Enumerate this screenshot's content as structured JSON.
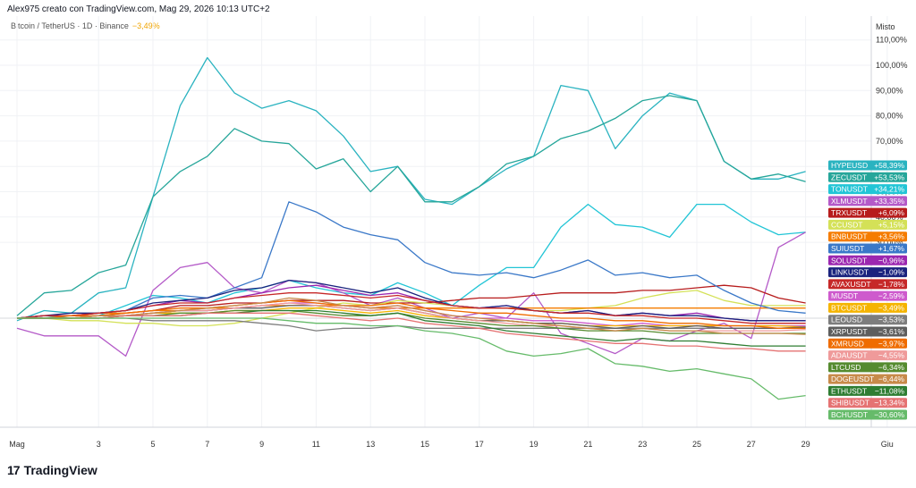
{
  "header": {
    "text": "Alex975 creato con TradingView.com, Mag 29, 2026 10:13 UTC+2"
  },
  "symbol": {
    "label": "Bitcoin / TetherUS · 1D · Binance",
    "change": "−3,49%"
  },
  "scale_mode": "Misto",
  "brand": {
    "name": "TradingView"
  },
  "chart_data": {
    "type": "line",
    "x_ticks": [
      {
        "d": 0,
        "label": "Mag"
      },
      {
        "d": 3,
        "label": "3"
      },
      {
        "d": 5,
        "label": "5"
      },
      {
        "d": 7,
        "label": "7"
      },
      {
        "d": 9,
        "label": "9"
      },
      {
        "d": 11,
        "label": "11"
      },
      {
        "d": 13,
        "label": "13"
      },
      {
        "d": 15,
        "label": "15"
      },
      {
        "d": 17,
        "label": "17"
      },
      {
        "d": 19,
        "label": "19"
      },
      {
        "d": 21,
        "label": "21"
      },
      {
        "d": 23,
        "label": "23"
      },
      {
        "d": 25,
        "label": "25"
      },
      {
        "d": 27,
        "label": "27"
      },
      {
        "d": 29,
        "label": "29"
      },
      {
        "d": 32,
        "label": "Giu"
      }
    ],
    "y_ticks": [
      {
        "v": 110,
        "label": "110,00%"
      },
      {
        "v": 100,
        "label": "100,00%"
      },
      {
        "v": 90,
        "label": "90,00%"
      },
      {
        "v": 80,
        "label": "80,00%"
      },
      {
        "v": 70,
        "label": "70,00%"
      },
      {
        "v": 60,
        "label": "60,00%"
      },
      {
        "v": 50,
        "label": "50,00%"
      },
      {
        "v": 40,
        "label": "40,00%"
      },
      {
        "v": 30,
        "label": "30,00%"
      }
    ],
    "x_domain": [
      0,
      32
    ],
    "y_domain": [
      -40,
      115
    ],
    "grid": true,
    "series": [
      {
        "name": "HYPEUSD",
        "change": "+58,39%",
        "color": "#2ab3c0",
        "values": [
          -1,
          3,
          2,
          10,
          12,
          48,
          84,
          103,
          89,
          83,
          86,
          82,
          72,
          58,
          60,
          47,
          45,
          52,
          59,
          64,
          92,
          90,
          67,
          80,
          89,
          86,
          62,
          55,
          55,
          58
        ]
      },
      {
        "name": "ZECUSDT",
        "change": "+53,53%",
        "color": "#26a69a",
        "values": [
          1,
          10,
          11,
          18,
          21,
          48,
          58,
          64,
          75,
          70,
          69,
          59,
          63,
          50,
          60,
          46,
          46,
          52,
          61,
          64,
          71,
          74,
          79,
          86,
          88,
          86,
          62,
          55,
          57,
          54
        ]
      },
      {
        "name": "TONUSDT",
        "change": "+34,21%",
        "color": "#22c5d6",
        "values": [
          0,
          1,
          0,
          1,
          5,
          9,
          8,
          6,
          10,
          12,
          15,
          12,
          10,
          9,
          14,
          10,
          5,
          13,
          20,
          20,
          36,
          45,
          37,
          36,
          32,
          45,
          45,
          38,
          33,
          34
        ]
      },
      {
        "name": "XLMUSDT",
        "change": "+33,35%",
        "color": "#b45ac8",
        "values": [
          -4,
          -7,
          -7,
          -7,
          -15,
          11,
          20,
          22,
          12,
          10,
          15,
          14,
          10,
          5,
          8,
          4,
          0,
          2,
          0,
          10,
          -6,
          -10,
          -14,
          -8,
          -9,
          -5,
          -2,
          -8,
          28,
          34
        ]
      },
      {
        "name": "TRXUSDT",
        "change": "+6,09%",
        "color": "#b71c1c",
        "values": [
          0,
          1,
          1,
          1,
          2,
          3,
          5,
          5,
          6,
          6,
          7,
          7,
          7,
          6,
          6,
          6,
          7,
          8,
          8,
          9,
          10,
          10,
          10,
          11,
          11,
          12,
          13,
          12,
          8,
          6
        ]
      },
      {
        "name": "CCUSDT",
        "change": "+5,15%",
        "color": "#d4e157",
        "values": [
          0,
          0,
          -1,
          -1,
          -2,
          -2,
          -3,
          -3,
          -2,
          0,
          2,
          4,
          6,
          5,
          7,
          6,
          5,
          4,
          4,
          3,
          3,
          4,
          5,
          8,
          10,
          11,
          7,
          5,
          5,
          5
        ]
      },
      {
        "name": "BNBUSDT",
        "change": "+3,56%",
        "color": "#f57c00",
        "values": [
          0,
          1,
          1,
          2,
          2,
          3,
          3,
          4,
          4,
          5,
          5,
          5,
          5,
          4,
          4,
          4,
          4,
          4,
          4,
          4,
          4,
          4,
          4,
          4,
          4,
          4,
          4,
          4,
          4,
          4
        ]
      },
      {
        "name": "SUIUSDT",
        "change": "+1,67%",
        "color": "#3a78c8",
        "values": [
          0,
          1,
          1,
          2,
          3,
          8,
          9,
          8,
          12,
          16,
          46,
          42,
          36,
          33,
          31,
          22,
          18,
          17,
          18,
          16,
          19,
          23,
          17,
          18,
          16,
          17,
          11,
          6,
          3,
          2
        ]
      },
      {
        "name": "SOLUSDT",
        "change": "−0,96%",
        "color": "#9c27b0",
        "values": [
          0,
          1,
          1,
          2,
          3,
          5,
          7,
          6,
          8,
          10,
          12,
          13,
          11,
          9,
          10,
          7,
          5,
          4,
          5,
          3,
          2,
          3,
          1,
          2,
          1,
          2,
          0,
          -1,
          -1,
          -1
        ]
      },
      {
        "name": "LINKUSDT",
        "change": "−1,09%",
        "color": "#1a237e",
        "values": [
          0,
          1,
          2,
          2,
          3,
          6,
          7,
          8,
          11,
          12,
          15,
          14,
          12,
          10,
          12,
          8,
          5,
          4,
          5,
          3,
          2,
          3,
          1,
          2,
          1,
          1,
          0,
          -1,
          -1,
          -1
        ]
      },
      {
        "name": "AVAXUSDT",
        "change": "−1,78%",
        "color": "#c62828",
        "values": [
          0,
          1,
          1,
          2,
          3,
          5,
          6,
          6,
          8,
          9,
          10,
          10,
          9,
          8,
          9,
          7,
          5,
          4,
          4,
          3,
          2,
          2,
          1,
          1,
          0,
          0,
          -1,
          -2,
          -2,
          -2
        ]
      },
      {
        "name": "MUSDT",
        "change": "−2,59%",
        "color": "#ce5acd",
        "values": [
          0,
          0,
          0,
          1,
          1,
          2,
          3,
          3,
          4,
          5,
          6,
          6,
          5,
          4,
          5,
          3,
          1,
          0,
          0,
          -1,
          -1,
          -2,
          -3,
          -2,
          -3,
          -3,
          -3,
          -3,
          -3,
          -3
        ]
      },
      {
        "name": "BTCUSDT",
        "change": "−3,49%",
        "color": "#f5b400",
        "values": [
          0,
          0,
          0,
          1,
          1,
          2,
          2,
          2,
          3,
          3,
          4,
          4,
          3,
          2,
          3,
          1,
          0,
          -1,
          -1,
          -2,
          -2,
          -3,
          -3,
          -3,
          -3,
          -3,
          -3,
          -3,
          -3,
          -3.5
        ]
      },
      {
        "name": "LEOUSD",
        "change": "−3,53%",
        "color": "#7d7d7d",
        "values": [
          0,
          0,
          0,
          0,
          0,
          -1,
          -1,
          -1,
          -1,
          -2,
          -3,
          -5,
          -4,
          -4,
          -3,
          -4,
          -4,
          -4,
          -4,
          -4,
          -4,
          -4,
          -4,
          -4,
          -4,
          -4,
          -4,
          -4,
          -4,
          -3.5
        ]
      },
      {
        "name": "XRPUSDT",
        "change": "−3,61%",
        "color": "#5e5e5e",
        "values": [
          0,
          0,
          0,
          1,
          1,
          2,
          3,
          3,
          4,
          4,
          5,
          5,
          4,
          3,
          4,
          2,
          0,
          -1,
          -1,
          -2,
          -2,
          -3,
          -4,
          -3,
          -4,
          -3,
          -4,
          -4,
          -4,
          -3.6
        ]
      },
      {
        "name": "XMRUSD",
        "change": "−3,97%",
        "color": "#ef6c00",
        "values": [
          0,
          0,
          1,
          1,
          2,
          3,
          4,
          4,
          5,
          6,
          7,
          6,
          5,
          5,
          6,
          4,
          3,
          2,
          2,
          1,
          0,
          0,
          -1,
          -1,
          -2,
          -2,
          -3,
          -3,
          -4,
          -4
        ]
      },
      {
        "name": "ADAUSDT",
        "change": "−4,55%",
        "color": "#ef9a9a",
        "values": [
          0,
          0,
          0,
          1,
          1,
          2,
          3,
          3,
          4,
          5,
          6,
          5,
          4,
          3,
          4,
          2,
          0,
          -1,
          -2,
          -3,
          -3,
          -4,
          -5,
          -4,
          -5,
          -5,
          -5,
          -5,
          -5,
          -4.5
        ]
      },
      {
        "name": "LTCUSD",
        "change": "−6,34%",
        "color": "#558b2f",
        "values": [
          0,
          0,
          0,
          0,
          1,
          1,
          2,
          2,
          3,
          3,
          3,
          2,
          1,
          1,
          2,
          0,
          -1,
          -2,
          -3,
          -3,
          -4,
          -5,
          -5,
          -5,
          -6,
          -6,
          -6,
          -6,
          -6,
          -6
        ]
      },
      {
        "name": "DOGEUSDT",
        "change": "−6,44%",
        "color": "#c78a4a",
        "values": [
          0,
          0,
          0,
          1,
          1,
          2,
          3,
          4,
          5,
          6,
          8,
          7,
          5,
          4,
          5,
          3,
          1,
          0,
          -1,
          -2,
          -3,
          -4,
          -5,
          -4,
          -5,
          -5,
          -6,
          -6,
          -6,
          -6.4
        ]
      },
      {
        "name": "ETHUSDT",
        "change": "−11,08%",
        "color": "#2e7d32",
        "values": [
          0,
          0,
          0,
          0,
          1,
          1,
          1,
          2,
          2,
          3,
          3,
          3,
          2,
          1,
          2,
          -1,
          -2,
          -3,
          -5,
          -6,
          -7,
          -8,
          -9,
          -8,
          -9,
          -9,
          -10,
          -11,
          -11,
          -11
        ]
      },
      {
        "name": "SHIBUSDT",
        "change": "−13,34%",
        "color": "#e57373",
        "values": [
          0,
          0,
          0,
          0,
          1,
          1,
          1,
          2,
          2,
          2,
          2,
          1,
          0,
          -1,
          0,
          -2,
          -3,
          -4,
          -6,
          -7,
          -8,
          -9,
          -10,
          -10,
          -11,
          -11,
          -12,
          -12,
          -13,
          -13
        ]
      },
      {
        "name": "BCHUSDT",
        "change": "−30,60%",
        "color": "#66bb6a",
        "values": [
          0,
          0,
          0,
          0,
          0,
          0,
          0,
          0,
          0,
          0,
          -1,
          -2,
          -2,
          -3,
          -3,
          -5,
          -6,
          -8,
          -13,
          -15,
          -14,
          -12,
          -18,
          -19,
          -21,
          -20,
          -22,
          -24,
          -32,
          -30.6
        ]
      }
    ]
  }
}
